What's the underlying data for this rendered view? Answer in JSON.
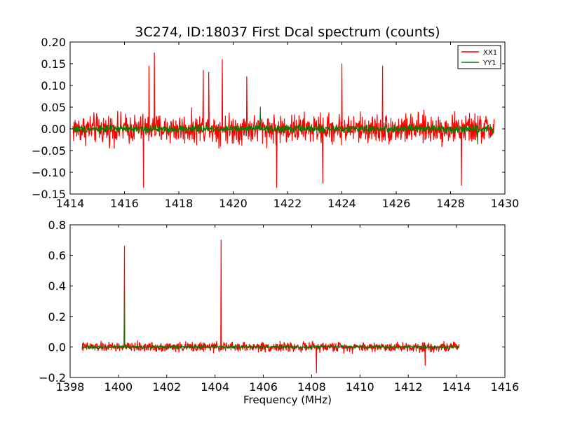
{
  "chart_data": [
    {
      "type": "line",
      "title": "3C274, ID:18037 First Dcal spectrum (counts)",
      "xlabel": "",
      "ylabel": "",
      "xlim": [
        1414,
        1430
      ],
      "ylim": [
        -0.15,
        0.2
      ],
      "x_ticks": [
        1414,
        1416,
        1418,
        1420,
        1422,
        1424,
        1426,
        1428,
        1430
      ],
      "y_ticks": [
        -0.15,
        -0.1,
        -0.05,
        0.0,
        0.05,
        0.1,
        0.15,
        0.2
      ],
      "grid": false,
      "legend": "top-right",
      "x_range_data": [
        1414.1,
        1429.6
      ],
      "series": [
        {
          "name": "XX1",
          "color": "#ff0000",
          "noise_amplitude": 0.05,
          "spikes": [
            {
              "x": 1416.7,
              "y": -0.135
            },
            {
              "x": 1416.9,
              "y": 0.145
            },
            {
              "x": 1417.1,
              "y": 0.175
            },
            {
              "x": 1418.9,
              "y": 0.135
            },
            {
              "x": 1419.1,
              "y": 0.13
            },
            {
              "x": 1419.6,
              "y": 0.16
            },
            {
              "x": 1420.5,
              "y": 0.12
            },
            {
              "x": 1421.6,
              "y": -0.135
            },
            {
              "x": 1423.3,
              "y": -0.125
            },
            {
              "x": 1424.0,
              "y": 0.15
            },
            {
              "x": 1425.5,
              "y": 0.145
            },
            {
              "x": 1428.4,
              "y": -0.13
            }
          ]
        },
        {
          "name": "YY1",
          "color": "#008000",
          "noise_amplitude": 0.012,
          "spikes": [
            {
              "x": 1421.0,
              "y": 0.05
            },
            {
              "x": 1429.0,
              "y": -0.035
            }
          ]
        }
      ]
    },
    {
      "type": "line",
      "title": "",
      "xlabel": "Frequency (MHz)",
      "ylabel": "",
      "xlim": [
        1398,
        1416
      ],
      "ylim": [
        -0.2,
        0.8
      ],
      "x_ticks": [
        1398,
        1400,
        1402,
        1404,
        1406,
        1408,
        1410,
        1412,
        1414,
        1416
      ],
      "y_ticks": [
        -0.2,
        0.0,
        0.2,
        0.4,
        0.6,
        0.8
      ],
      "grid": false,
      "x_range_data": [
        1398.5,
        1414.1
      ],
      "series": [
        {
          "color": "#ff0000",
          "noise_amplitude": 0.045,
          "spikes": [
            {
              "x": 1400.25,
              "y": 0.66
            },
            {
              "x": 1404.25,
              "y": 0.7
            },
            {
              "x": 1408.2,
              "y": -0.17
            },
            {
              "x": 1412.7,
              "y": -0.12
            }
          ]
        },
        {
          "color": "#008000",
          "noise_amplitude": 0.012,
          "spikes": [
            {
              "x": 1400.25,
              "y": 0.36
            }
          ]
        }
      ]
    }
  ]
}
